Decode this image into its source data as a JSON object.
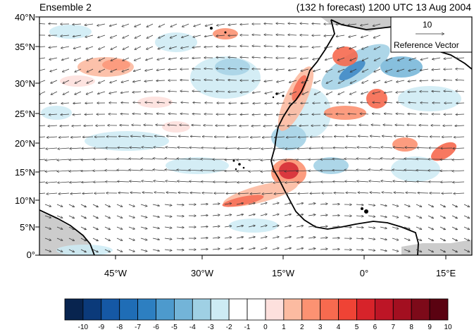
{
  "title": {
    "left": "Ensemble 2",
    "right": "(132 h forecast) 1200 UTC 13 Aug 2004"
  },
  "map": {
    "lat_ticks": [
      "40°N",
      "35°N",
      "30°N",
      "25°N",
      "20°N",
      "15°N",
      "10°N",
      "5°N",
      "0°"
    ],
    "lon_ticks": [
      "45°W",
      "30°W",
      "15°W",
      "0°",
      "15°E"
    ],
    "reference_vector": {
      "value": "10",
      "label": "Reference Vector"
    },
    "land_color": "#cccccc",
    "coast_color": "#000000"
  },
  "colorbar": {
    "labels": [
      "-10",
      "-9",
      "-8",
      "-7",
      "-6",
      "-5",
      "-4",
      "-3",
      "-2",
      "-1",
      "0",
      "1",
      "2",
      "3",
      "4",
      "5",
      "6",
      "7",
      "8",
      "9",
      "10"
    ],
    "colors": [
      "#08244f",
      "#0b3a7a",
      "#1558a5",
      "#1f6db6",
      "#2d7fc1",
      "#4d9acd",
      "#73b4d8",
      "#9fd0e4",
      "#cdebf4",
      "#ffffff",
      "#ffffff",
      "#fde0dd",
      "#fcbba1",
      "#fc9272",
      "#f76a4f",
      "#ef4335",
      "#d7232a",
      "#bd1526",
      "#a30f20",
      "#7d0a19",
      "#5a0211"
    ]
  }
}
